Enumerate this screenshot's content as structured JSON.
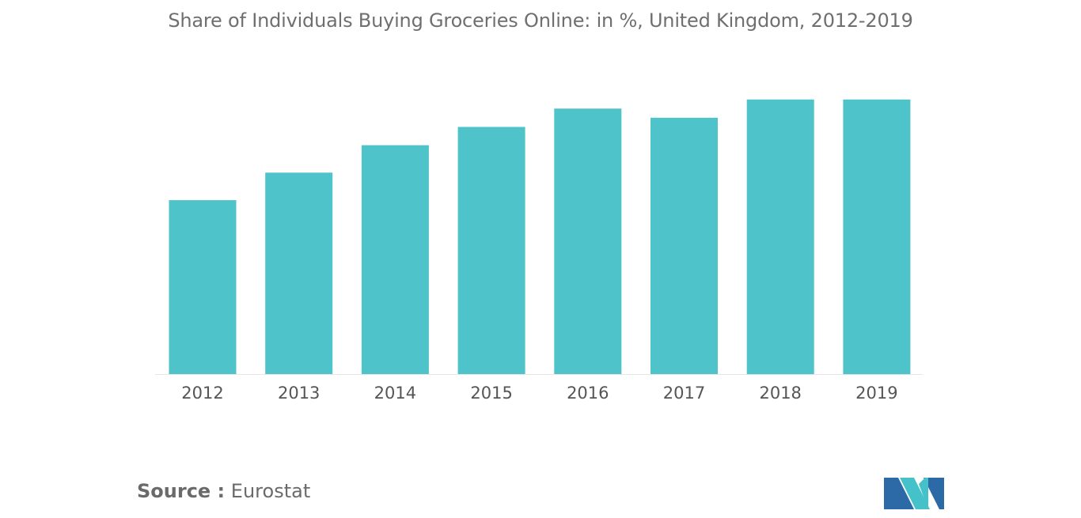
{
  "chart_data": {
    "type": "bar",
    "title": "Share of Individuals Buying Groceries Online: in %, United Kingdom, 2012-2019",
    "categories": [
      "2012",
      "2013",
      "2014",
      "2015",
      "2016",
      "2017",
      "2018",
      "2019"
    ],
    "values": [
      19,
      22,
      25,
      27,
      29,
      28,
      30,
      30
    ],
    "xlabel": "",
    "ylabel": "",
    "ylim": [
      0,
      40
    ],
    "grid": false,
    "legend": "none",
    "bar_color": "#4fc3ca"
  },
  "source": {
    "label": "Source :",
    "value": "Eurostat"
  },
  "logo": {
    "icon": "mordor-intelligence-logo",
    "colors": [
      "#2b6aa6",
      "#45c1c9"
    ]
  }
}
